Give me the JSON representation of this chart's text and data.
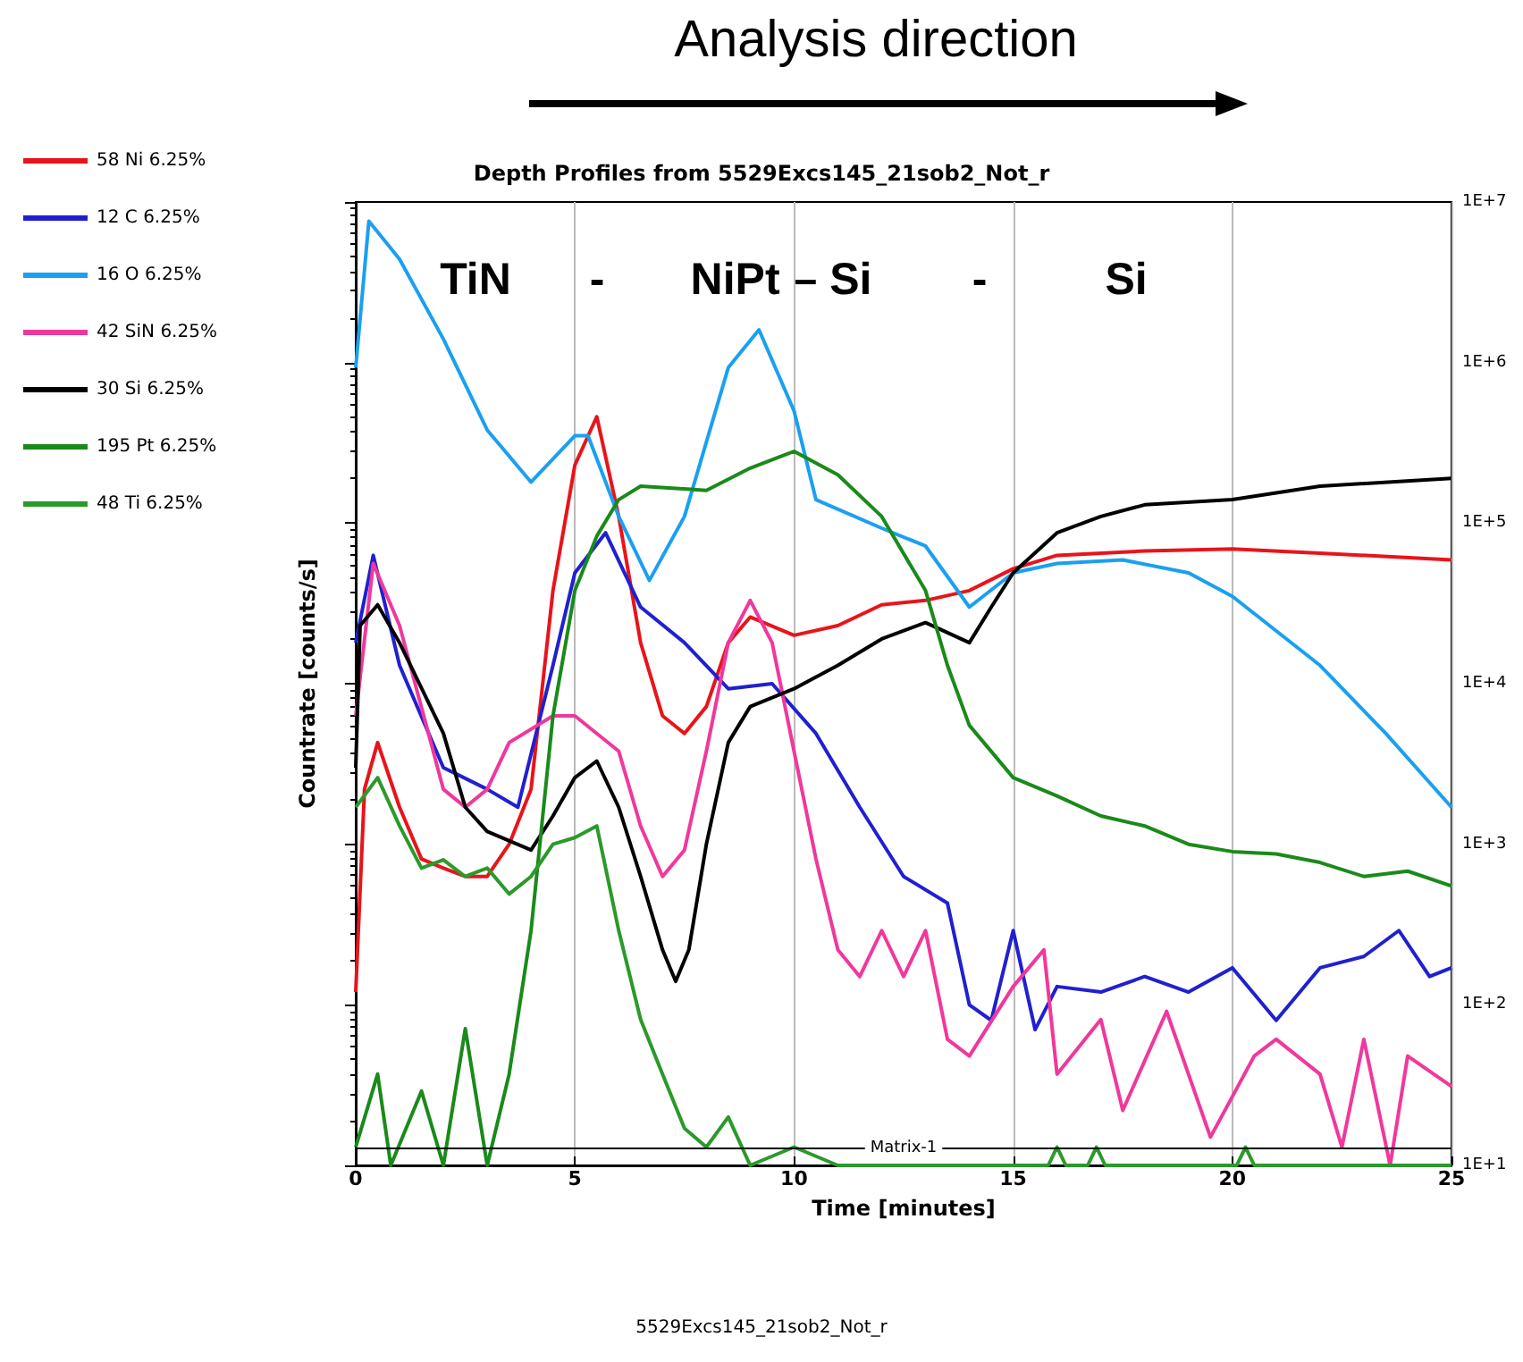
{
  "chart_data": {
    "type": "line",
    "title": "Depth Profiles from 5529Excs145_21sob2_Not_r",
    "xlabel": "Time [minutes]",
    "ylabel": "Countrate [counts/s]",
    "annotations": [
      "Analysis direction",
      "TiN",
      "-",
      "NiPt – Si",
      "-",
      "Si",
      "5529Excs145_21sob2_Not_r"
    ],
    "legend": "left",
    "grid": "x",
    "log": "y",
    "xlim": [
      0,
      25
    ],
    "xticks": [
      0,
      5,
      10,
      15,
      20,
      25
    ],
    "ylim": [
      10,
      10000000
    ],
    "yticks": [
      {
        "value": 10,
        "label": "1E+1"
      },
      {
        "value": 100,
        "label": "1E+2"
      },
      {
        "value": 1000,
        "label": "1E+3"
      },
      {
        "value": 10000,
        "label": "1E+4"
      },
      {
        "value": 100000,
        "label": "1E+5"
      },
      {
        "value": 1000000,
        "label": "1E+6"
      },
      {
        "value": 10000000,
        "label": "1E+7"
      }
    ],
    "ref_lines": [
      {
        "axis": "y",
        "value": 13,
        "label": "Matrix-1",
        "color": "#000000"
      }
    ],
    "series": [
      {
        "name": "58 Ni 6.25%",
        "color": "#e8141a",
        "x": [
          0,
          0.2,
          0.5,
          1,
          1.5,
          2,
          2.5,
          3,
          3.5,
          4,
          4.5,
          5,
          5.5,
          6,
          6.5,
          7,
          7.5,
          8,
          8.5,
          9,
          10,
          11,
          12,
          13,
          14,
          15,
          16,
          18,
          20,
          22,
          25
        ],
        "values": [
          120,
          2200,
          4300,
          1700,
          810,
          710,
          630,
          630,
          1000,
          2200,
          38000,
          230000,
          460000,
          110000,
          18000,
          6300,
          4900,
          7200,
          18000,
          26000,
          20000,
          23000,
          31000,
          33000,
          38000,
          52000,
          63000,
          67000,
          69000,
          65000,
          59000
        ]
      },
      {
        "name": "12 C 6.25%",
        "color": "#2020d0",
        "x": [
          0,
          0.4,
          1,
          2,
          3,
          3.7,
          4.5,
          5,
          5.7,
          6.5,
          7.5,
          8.5,
          9.5,
          10.5,
          11.5,
          12.5,
          13.5,
          14,
          14.5,
          15,
          15.5,
          16,
          17,
          18,
          19,
          20,
          21,
          22,
          23,
          23.8,
          24.5,
          25
        ],
        "values": [
          18000,
          63000,
          13000,
          3000,
          2200,
          1700,
          13000,
          49000,
          87000,
          30000,
          18000,
          9300,
          10000,
          4900,
          1700,
          630,
          430,
          100,
          80,
          290,
          70,
          130,
          120,
          150,
          120,
          170,
          80,
          170,
          200,
          290,
          150,
          170
        ]
      },
      {
        "name": "16 O 6.25%",
        "color": "#1aa0f0",
        "x": [
          0,
          0.3,
          1,
          2,
          3,
          4,
          5,
          5.3,
          6,
          6.7,
          7.5,
          8.5,
          9.2,
          10,
          10.5,
          12,
          13,
          14,
          15,
          16,
          17.5,
          19,
          20,
          22,
          23.5,
          25
        ],
        "values": [
          930000,
          7600000,
          4400000,
          1400000,
          380000,
          180000,
          350000,
          350000,
          110000,
          44000,
          110000,
          930000,
          1600000,
          500000,
          140000,
          93000,
          72000,
          30000,
          49000,
          56000,
          59000,
          49000,
          35000,
          13000,
          4900,
          1700
        ]
      },
      {
        "name": "42 SiN 6.25%",
        "color": "#f0389c",
        "x": [
          0,
          0.4,
          1,
          2,
          2.5,
          3,
          3.5,
          4.5,
          5,
          6,
          6.5,
          7,
          7.5,
          8,
          8.5,
          9,
          9.5,
          10,
          10.5,
          11,
          11.5,
          12,
          12.5,
          13,
          13.5,
          14,
          15,
          15.7,
          16,
          17,
          17.5,
          18.5,
          19.5,
          20.5,
          21,
          22,
          22.5,
          23,
          23.6,
          24,
          25
        ],
        "values": [
          6300,
          56000,
          23000,
          2200,
          1700,
          2200,
          4300,
          6300,
          6300,
          3800,
          1300,
          630,
          920,
          3800,
          18000,
          33000,
          18000,
          3800,
          810,
          220,
          150,
          290,
          150,
          290,
          61,
          48,
          130,
          220,
          37,
          81,
          22,
          91,
          15,
          48,
          61,
          37,
          13,
          61,
          10,
          48,
          31
        ]
      },
      {
        "name": "30 Si 6.25%",
        "color": "#000000",
        "x": [
          0,
          0.1,
          0.5,
          1,
          2,
          2.5,
          3,
          4,
          4.5,
          5,
          5.5,
          6,
          6.5,
          7,
          7.3,
          7.6,
          8,
          8.5,
          9,
          10,
          11,
          12,
          13,
          14,
          14.5,
          15,
          16,
          17,
          18,
          20,
          22,
          25
        ],
        "values": [
          3000,
          23000,
          31000,
          18000,
          4900,
          1700,
          1200,
          920,
          1500,
          2600,
          3300,
          1700,
          630,
          220,
          140,
          220,
          1000,
          4300,
          7200,
          9300,
          13000,
          19000,
          24000,
          18000,
          30000,
          49000,
          87000,
          110000,
          130000,
          140000,
          170000,
          190000
        ]
      },
      {
        "name": "195 Pt 6.25%",
        "color": "#1a8a1a",
        "x": [
          0,
          0.5,
          0.8,
          1.5,
          2,
          2.5,
          3,
          3.5,
          4,
          4.5,
          5,
          5.5,
          6,
          6.5,
          8,
          9,
          10,
          11,
          12,
          13,
          13.5,
          14,
          15,
          16,
          17,
          18,
          19,
          20,
          21,
          22,
          23,
          24,
          25
        ],
        "values": [
          13,
          37,
          10,
          29,
          10,
          71,
          10,
          37,
          290,
          6300,
          38000,
          83000,
          140000,
          170000,
          160000,
          220000,
          280000,
          200000,
          110000,
          38000,
          13000,
          5500,
          2600,
          2000,
          1500,
          1300,
          1000,
          900,
          870,
          770,
          630,
          680,
          550
        ]
      },
      {
        "name": "48 Ti 6.25%",
        "color": "#2a9a2a",
        "x": [
          0,
          0.5,
          1,
          1.5,
          2,
          2.5,
          3,
          3.5,
          4,
          4.5,
          5,
          5.5,
          6,
          6.5,
          7,
          7.5,
          8,
          8.5,
          9,
          10,
          11,
          12,
          15.8,
          16,
          16.2,
          16.7,
          16.9,
          17.1,
          20.1,
          20.3,
          20.5,
          25
        ],
        "values": [
          1700,
          2600,
          1300,
          710,
          800,
          630,
          710,
          490,
          630,
          1000,
          1100,
          1300,
          290,
          81,
          37,
          17,
          13,
          20,
          10,
          13,
          10,
          10,
          10,
          13,
          10,
          10,
          13,
          10,
          10,
          13,
          10,
          10
        ]
      }
    ]
  }
}
